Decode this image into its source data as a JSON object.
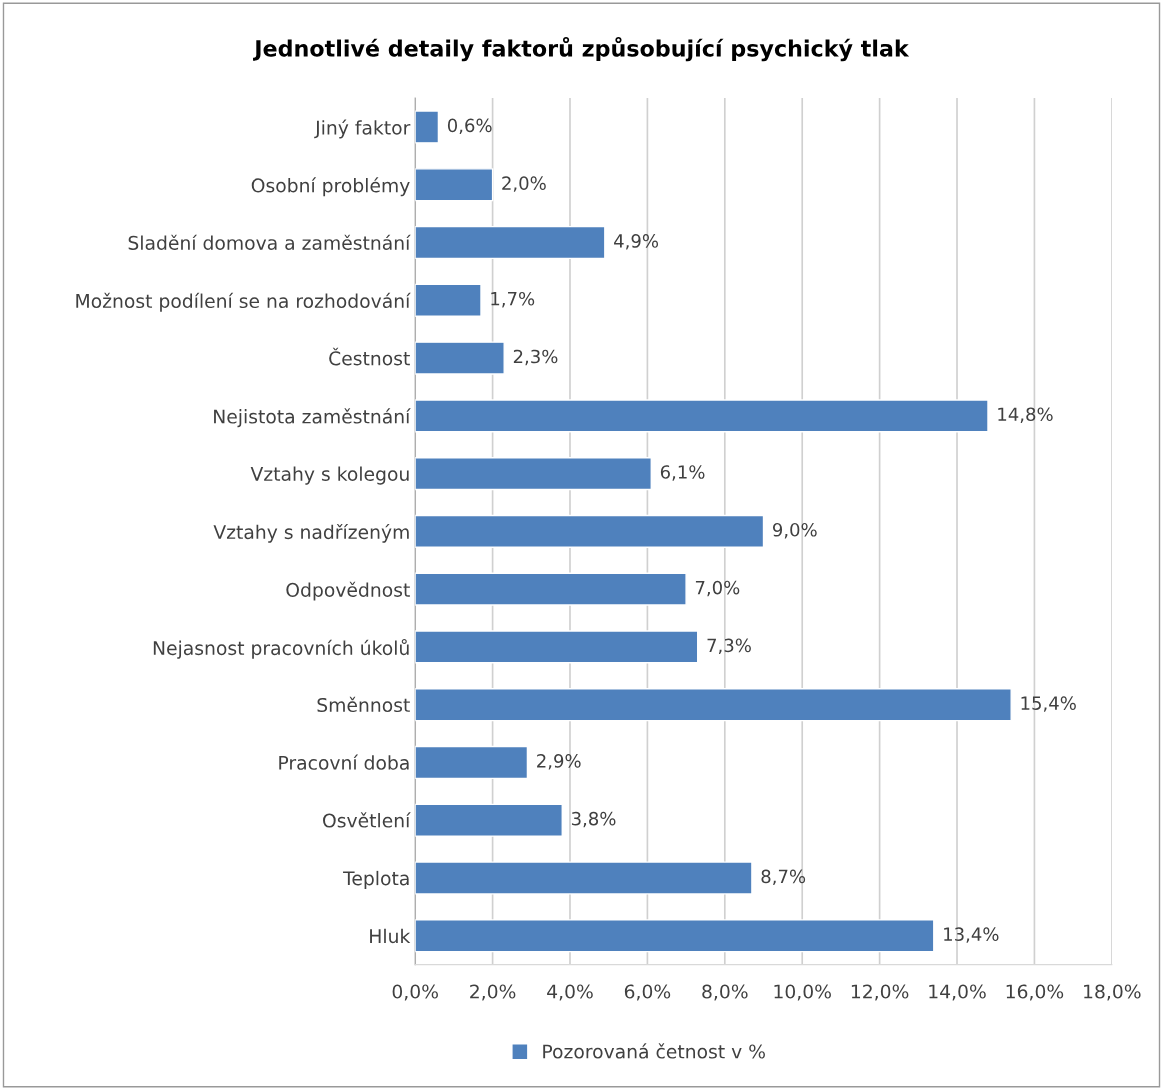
{
  "chart_data": {
    "type": "bar",
    "orientation": "horizontal",
    "title": "Jednotlivé detaily faktorů způsobující psychický tlak",
    "categories": [
      "Jiný faktor",
      "Osobní problémy",
      "Sladění domova a zaměstnání",
      "Možnost podílení se na rozhodování",
      "Čestnost",
      "Nejistota zaměstnání",
      "Vztahy s kolegou",
      "Vztahy s nadřízeným",
      "Odpovědnost",
      "Nejasnost pracovních úkolů",
      "Směnnost",
      "Pracovní doba",
      "Osvětlení",
      "Teplota",
      "Hluk"
    ],
    "series": [
      {
        "name": "Pozorovaná četnost v %",
        "color": "#4f81bd",
        "values": [
          0.6,
          2.0,
          4.9,
          1.7,
          2.3,
          14.8,
          6.1,
          9.0,
          7.0,
          7.3,
          15.4,
          2.9,
          3.8,
          8.7,
          13.4
        ],
        "value_labels": [
          "0,6%",
          "2,0%",
          "4,9%",
          "1,7%",
          "2,3%",
          "14,8%",
          "6,1%",
          "9,0%",
          "7,0%",
          "7,3%",
          "15,4%",
          "2,9%",
          "3,8%",
          "8,7%",
          "13,4%"
        ]
      }
    ],
    "xlim": [
      0,
      18
    ],
    "xticks": [
      {
        "value": 0,
        "label": "0,0%"
      },
      {
        "value": 2,
        "label": "2,0%"
      },
      {
        "value": 4,
        "label": "4,0%"
      },
      {
        "value": 6,
        "label": "6,0%"
      },
      {
        "value": 8,
        "label": "8,0%"
      },
      {
        "value": 10,
        "label": "10,0%"
      },
      {
        "value": 12,
        "label": "12,0%"
      },
      {
        "value": 14,
        "label": "14,0%"
      },
      {
        "value": 16,
        "label": "16,0%"
      },
      {
        "value": 18,
        "label": "18,0%"
      }
    ],
    "grid": "x",
    "legend": "bottom"
  }
}
